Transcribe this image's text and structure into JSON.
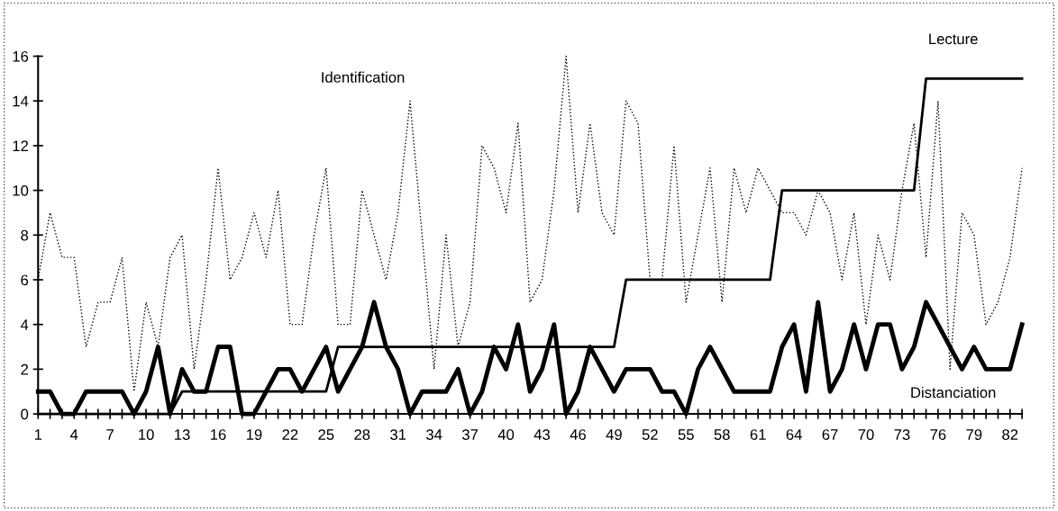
{
  "chart_data": {
    "type": "line",
    "categories": [
      "1",
      null,
      null,
      "4",
      null,
      null,
      "7",
      null,
      null,
      "10",
      null,
      null,
      "13",
      null,
      null,
      "16",
      null,
      null,
      "19",
      null,
      null,
      "22",
      null,
      null,
      "25",
      null,
      null,
      "28",
      null,
      null,
      "31",
      null,
      null,
      "34",
      null,
      null,
      "37",
      null,
      null,
      "40",
      null,
      null,
      "43",
      null,
      null,
      "46",
      null,
      null,
      "49",
      null,
      null,
      "52",
      null,
      null,
      "55",
      null,
      null,
      "58",
      null,
      null,
      "61",
      null,
      null,
      "64",
      null,
      null,
      "67",
      null,
      null,
      "70",
      null,
      null,
      "73",
      null,
      null,
      "76",
      null,
      null,
      "79",
      null,
      null,
      "82",
      null
    ],
    "series": [
      {
        "name": "Identification",
        "color": "#000000",
        "line_style": "dotted",
        "values": [
          6,
          9,
          7,
          7,
          3,
          5,
          5,
          7,
          1,
          5,
          3,
          7,
          8,
          2,
          6,
          11,
          6,
          7,
          9,
          7,
          10,
          4,
          4,
          8,
          11,
          4,
          4,
          10,
          8,
          6,
          9,
          14,
          8,
          2,
          8,
          3,
          5,
          12,
          11,
          9,
          13,
          5,
          6,
          10,
          16,
          9,
          13,
          9,
          8,
          14,
          13,
          6,
          6,
          12,
          5,
          8,
          11,
          5,
          11,
          9,
          11,
          10,
          9,
          9,
          8,
          10,
          9,
          6,
          9,
          4,
          8,
          6,
          10,
          13,
          7,
          14,
          2,
          9,
          8,
          4,
          5,
          7,
          11
        ]
      },
      {
        "name": "Lecture",
        "color": "#000000",
        "line_style": "solid",
        "values": [
          0,
          0,
          0,
          0,
          0,
          0,
          0,
          0,
          0,
          0,
          0,
          0,
          1,
          1,
          1,
          1,
          1,
          1,
          1,
          1,
          1,
          1,
          1,
          1,
          1,
          3,
          3,
          3,
          3,
          3,
          3,
          3,
          3,
          3,
          3,
          3,
          3,
          3,
          3,
          3,
          3,
          3,
          3,
          3,
          3,
          3,
          3,
          3,
          3,
          6,
          6,
          6,
          6,
          6,
          6,
          6,
          6,
          6,
          6,
          6,
          6,
          6,
          10,
          10,
          10,
          10,
          10,
          10,
          10,
          10,
          10,
          10,
          10,
          10,
          15,
          15,
          15,
          15,
          15,
          15,
          15,
          15,
          15
        ]
      },
      {
        "name": "Distanciation",
        "color": "#000000",
        "line_style": "solid",
        "values": [
          1,
          1,
          0,
          0,
          1,
          1,
          1,
          1,
          0,
          1,
          3,
          0,
          2,
          1,
          1,
          3,
          3,
          0,
          0,
          1,
          2,
          2,
          1,
          2,
          3,
          1,
          2,
          3,
          5,
          3,
          2,
          0,
          1,
          1,
          1,
          2,
          0,
          1,
          3,
          2,
          4,
          1,
          2,
          4,
          0,
          1,
          3,
          2,
          1,
          2,
          2,
          2,
          1,
          1,
          0,
          2,
          3,
          2,
          1,
          1,
          1,
          1,
          3,
          4,
          1,
          5,
          1,
          2,
          4,
          2,
          4,
          4,
          2,
          3,
          5,
          4,
          3,
          2,
          3,
          2,
          2,
          2,
          4
        ]
      }
    ],
    "ylim": [
      0,
      16
    ],
    "yticks": [
      0,
      2,
      4,
      6,
      8,
      10,
      12,
      14,
      16
    ],
    "grid": false,
    "legend": false,
    "marker": "none"
  }
}
